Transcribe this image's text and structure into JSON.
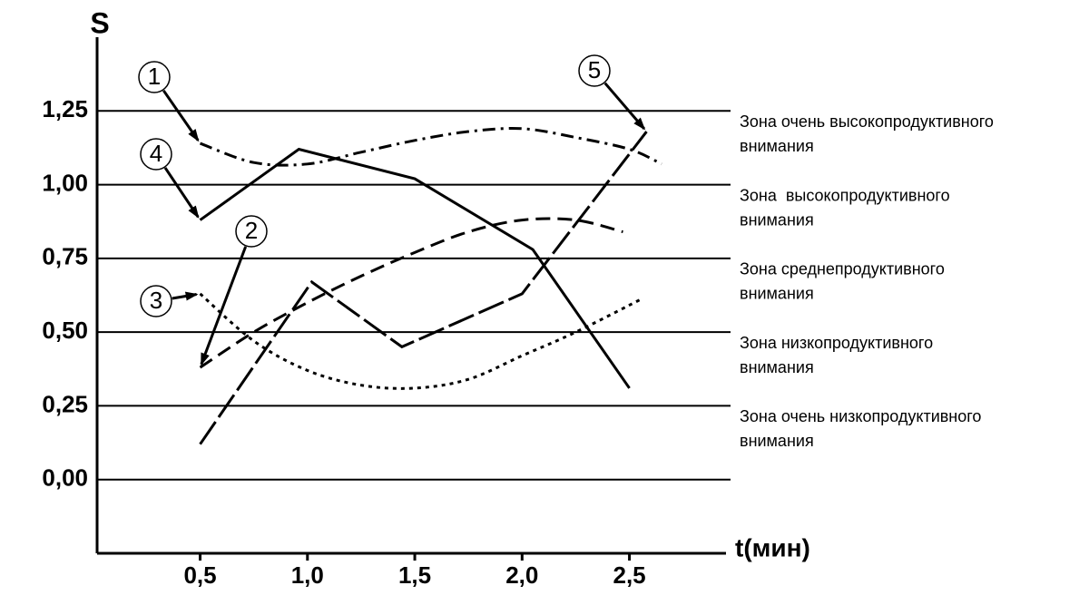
{
  "chart_data": {
    "type": "line",
    "ylabel": "S",
    "xlabel": "t(мин)",
    "xlim": [
      0.02,
      2.95
    ],
    "ylim": [
      -0.25,
      1.5
    ],
    "xticks": [
      {
        "value": 0.5,
        "label": "0,5"
      },
      {
        "value": 1.0,
        "label": "1,0"
      },
      {
        "value": 1.5,
        "label": "1,5"
      },
      {
        "value": 2.0,
        "label": "2,0"
      },
      {
        "value": 2.5,
        "label": "2,5"
      }
    ],
    "yticks": [
      {
        "value": 0,
        "label": "0,00"
      },
      {
        "value": 0.25,
        "label": "0,25"
      },
      {
        "value": 0.5,
        "label": "0,50"
      },
      {
        "value": 0.75,
        "label": "0,75"
      },
      {
        "value": 1.0,
        "label": "1,00"
      },
      {
        "value": 1.25,
        "label": "1,25"
      }
    ],
    "grid": true,
    "zones": [
      [
        "Зона очень высокопродуктивного",
        "внимания"
      ],
      [
        "Зона  высокопродуктивного",
        "внимания"
      ],
      [
        "Зона среднепродуктивного",
        "внимания"
      ],
      [
        "Зона низкопродуктивного",
        "внимания"
      ],
      [
        "Зона очень низкопродуктивного",
        "внимания"
      ]
    ],
    "series": [
      {
        "name": "1",
        "color": "#000000",
        "dash": "14 6 3 6",
        "smooth": true,
        "x": [
          0.5,
          0.75,
          1.0,
          1.25,
          1.5,
          1.75,
          2.0,
          2.25,
          2.5,
          2.65
        ],
        "values": [
          1.14,
          1.075,
          1.07,
          1.11,
          1.15,
          1.18,
          1.19,
          1.16,
          1.12,
          1.07
        ]
      },
      {
        "name": "2",
        "color": "#000000",
        "dash": "16 8",
        "smooth": true,
        "x": [
          0.5,
          0.75,
          1.0,
          1.25,
          1.5,
          1.75,
          2.0,
          2.25,
          2.47
        ],
        "values": [
          0.38,
          0.5,
          0.6,
          0.69,
          0.77,
          0.84,
          0.88,
          0.88,
          0.84
        ]
      },
      {
        "name": "3",
        "color": "#000000",
        "dash": "4 5",
        "smooth": true,
        "x": [
          0.5,
          0.75,
          1.0,
          1.25,
          1.5,
          1.75,
          2.0,
          2.25,
          2.55
        ],
        "values": [
          0.63,
          0.47,
          0.37,
          0.32,
          0.31,
          0.34,
          0.42,
          0.5,
          0.61
        ]
      },
      {
        "name": "4",
        "color": "#000000",
        "dash": "none",
        "smooth": false,
        "x": [
          0.5,
          0.96,
          1.5,
          2.05,
          2.5
        ],
        "values": [
          0.88,
          1.12,
          1.02,
          0.78,
          0.31
        ]
      },
      {
        "name": "5",
        "color": "#000000",
        "dash": "30 6",
        "smooth": false,
        "x": [
          0.5,
          1.02,
          1.44,
          2.0,
          2.58
        ],
        "values": [
          0.12,
          0.67,
          0.45,
          0.63,
          1.18
        ]
      }
    ]
  }
}
